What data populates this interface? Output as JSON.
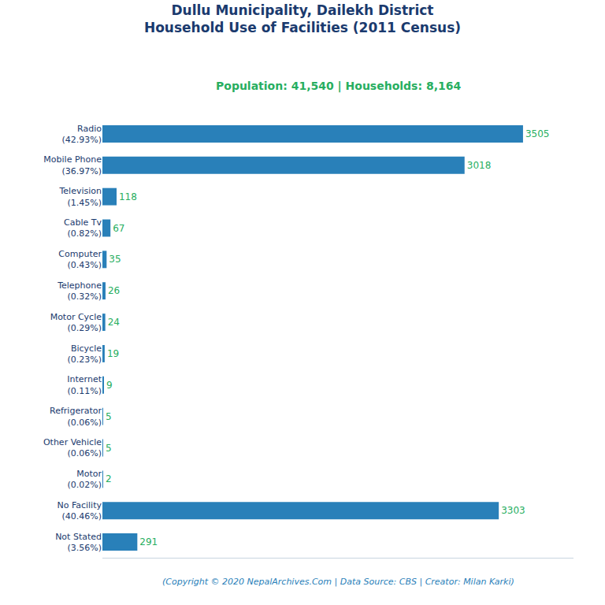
{
  "chart_data": {
    "type": "bar",
    "orientation": "horizontal",
    "title": "Dullu Municipality, Dailekh District\nHousehold Use of Facilities (2011 Census)",
    "subtitle": "Population: 41,540 | Households: 8,164",
    "annotations": [
      "(Copyright © 2020 NepalArchives.Com | Data Source: CBS | Creator: Milan Karki)"
    ],
    "categories": [
      "Radio\n(42.93%)",
      "Mobile Phone\n(36.97%)",
      "Television\n(1.45%)",
      "Cable Tv\n(0.82%)",
      "Computer\n(0.43%)",
      "Telephone\n(0.32%)",
      "Motor Cycle\n(0.29%)",
      "Bicycle\n(0.23%)",
      "Internet\n(0.11%)",
      "Refrigerator\n(0.06%)",
      "Other Vehicle\n(0.06%)",
      "Motor\n(0.02%)",
      "No Facility\n(40.46%)",
      "Not Stated\n(3.56%)"
    ],
    "values": [
      3505,
      3018,
      118,
      67,
      35,
      26,
      24,
      19,
      9,
      5,
      5,
      2,
      3303,
      291
    ],
    "color": "#2980b9",
    "xlim": [
      0,
      3925.6
    ],
    "data_labels": true,
    "tick_labels": "y",
    "grid": false
  }
}
